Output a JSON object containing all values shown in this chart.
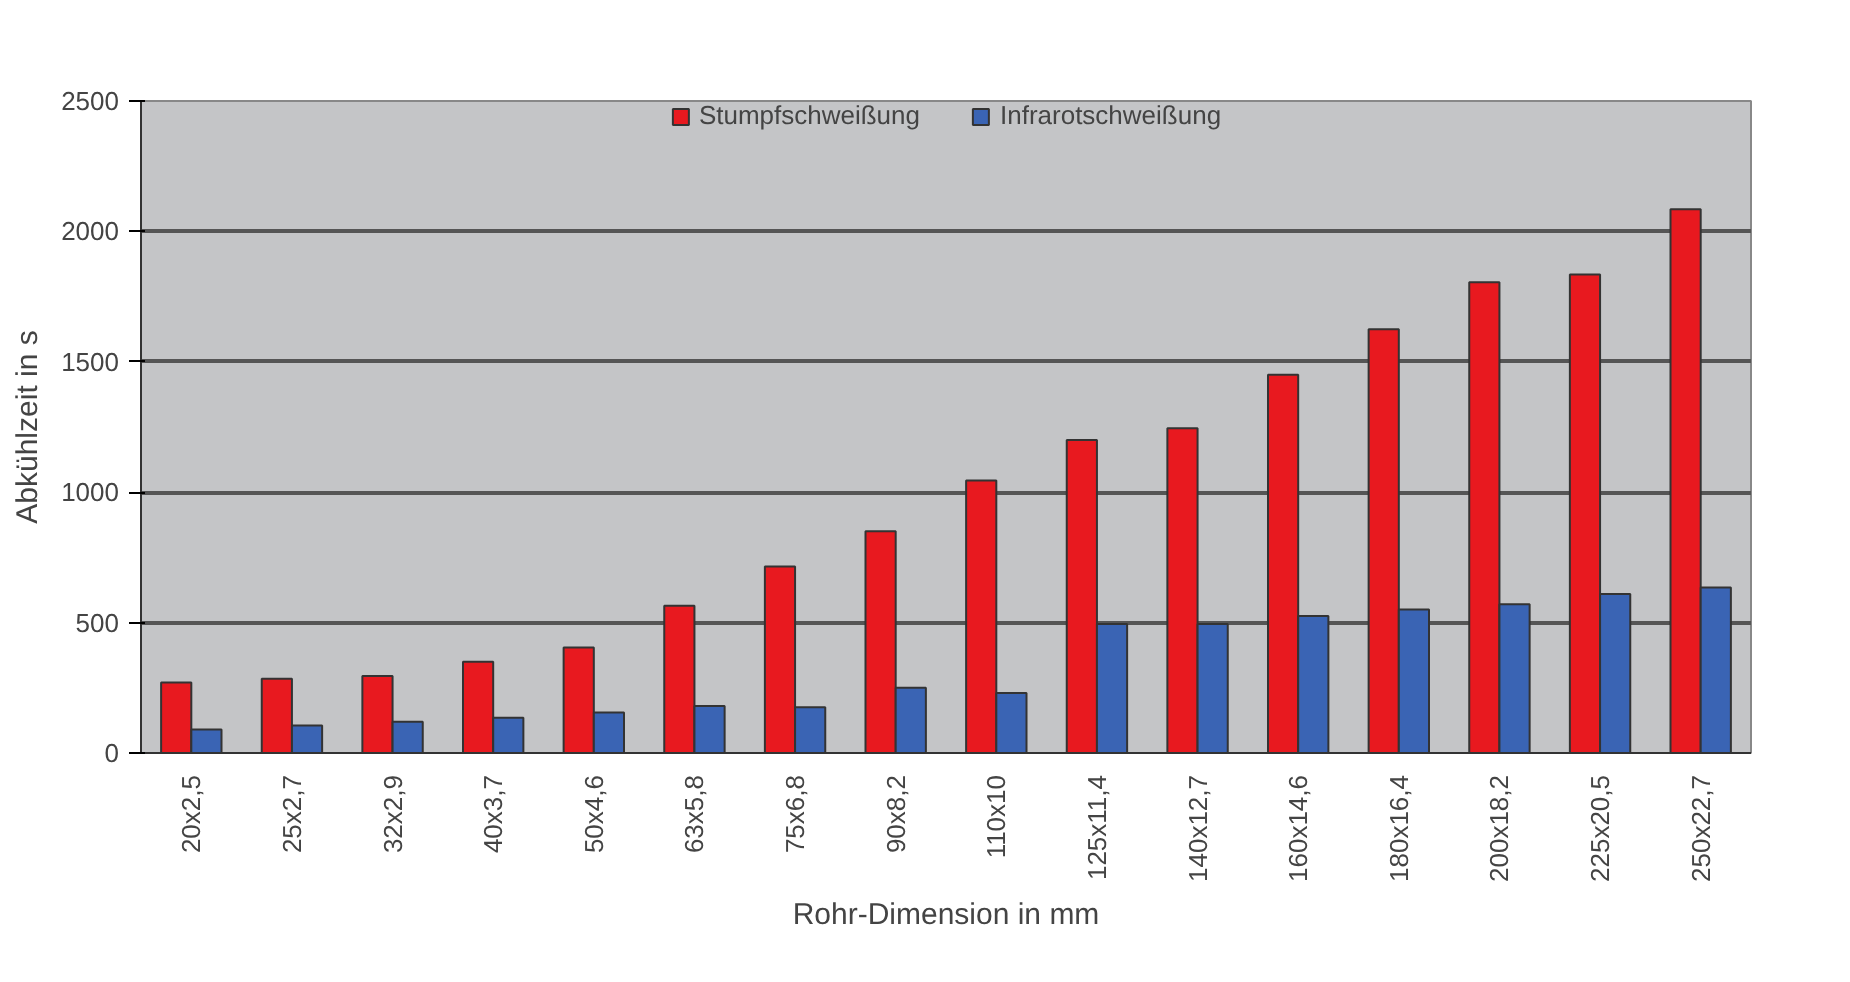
{
  "chart_data": {
    "type": "bar",
    "xlabel": "Rohr-Dimension in mm",
    "ylabel": "Abkühlzeit in s",
    "categories": [
      "20x2,5",
      "25x2,7",
      "32x2,9",
      "40x3,7",
      "50x4,6",
      "63x5,8",
      "75x6,8",
      "90x8,2",
      "110x10",
      "125x11,4",
      "140x12,7",
      "160x14,6",
      "180x16,4",
      "200x18,2",
      "225x20,5",
      "250x22,7"
    ],
    "series": [
      {
        "name": "Stumpfschweißung",
        "color": "#e8191f",
        "values": [
          270,
          285,
          295,
          350,
          405,
          565,
          715,
          850,
          1045,
          1200,
          1245,
          1450,
          1625,
          1805,
          1835,
          2085
        ]
      },
      {
        "name": "Infrarotschweißung",
        "color": "#3a64b4",
        "values": [
          90,
          105,
          120,
          135,
          155,
          180,
          175,
          250,
          230,
          495,
          495,
          525,
          550,
          570,
          610,
          635
        ]
      }
    ],
    "ylim": [
      0,
      2500
    ],
    "yticks": [
      0,
      500,
      1000,
      1500,
      2000,
      2500
    ],
    "grid": "y",
    "legend": "top"
  }
}
